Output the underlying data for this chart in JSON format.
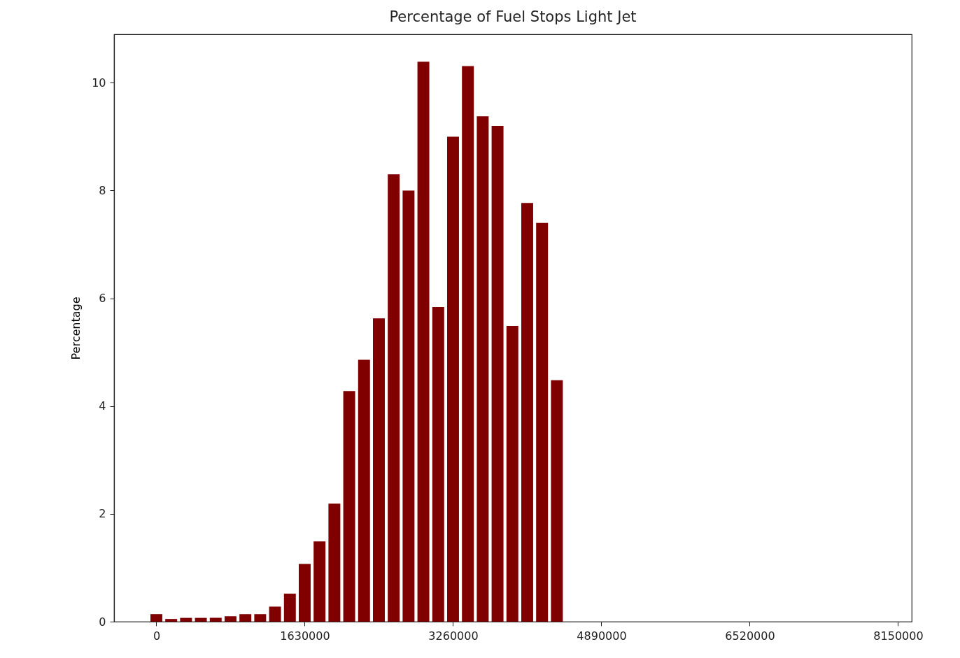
{
  "chart_data": {
    "type": "bar",
    "title": "Percentage of Fuel Stops Light Jet",
    "ylabel": "Percentage",
    "x": [
      0,
      163000,
      326000,
      489000,
      652000,
      815000,
      978000,
      1141000,
      1304000,
      1467000,
      1630000,
      1793000,
      1956000,
      2119000,
      2282000,
      2445000,
      2608000,
      2771000,
      2934000,
      3097000,
      3260000,
      3423000,
      3586000,
      3749000,
      3912000,
      4075000,
      4238000,
      4401000
    ],
    "values": [
      0.14,
      0.05,
      0.07,
      0.07,
      0.07,
      0.1,
      0.14,
      0.14,
      0.28,
      0.52,
      1.07,
      1.49,
      2.19,
      4.28,
      4.86,
      5.63,
      8.3,
      8.0,
      10.39,
      5.84,
      9.0,
      10.31,
      9.38,
      9.2,
      5.49,
      7.77,
      7.4,
      4.48
    ],
    "color": "#800000",
    "xlim": [
      -465000,
      8300000
    ],
    "xticks": [
      0,
      1630000,
      3260000,
      4890000,
      6520000,
      8150000
    ],
    "ylim": [
      0,
      10.9
    ],
    "yticks": [
      0,
      2,
      4,
      6,
      8,
      10
    ],
    "grid": false
  }
}
